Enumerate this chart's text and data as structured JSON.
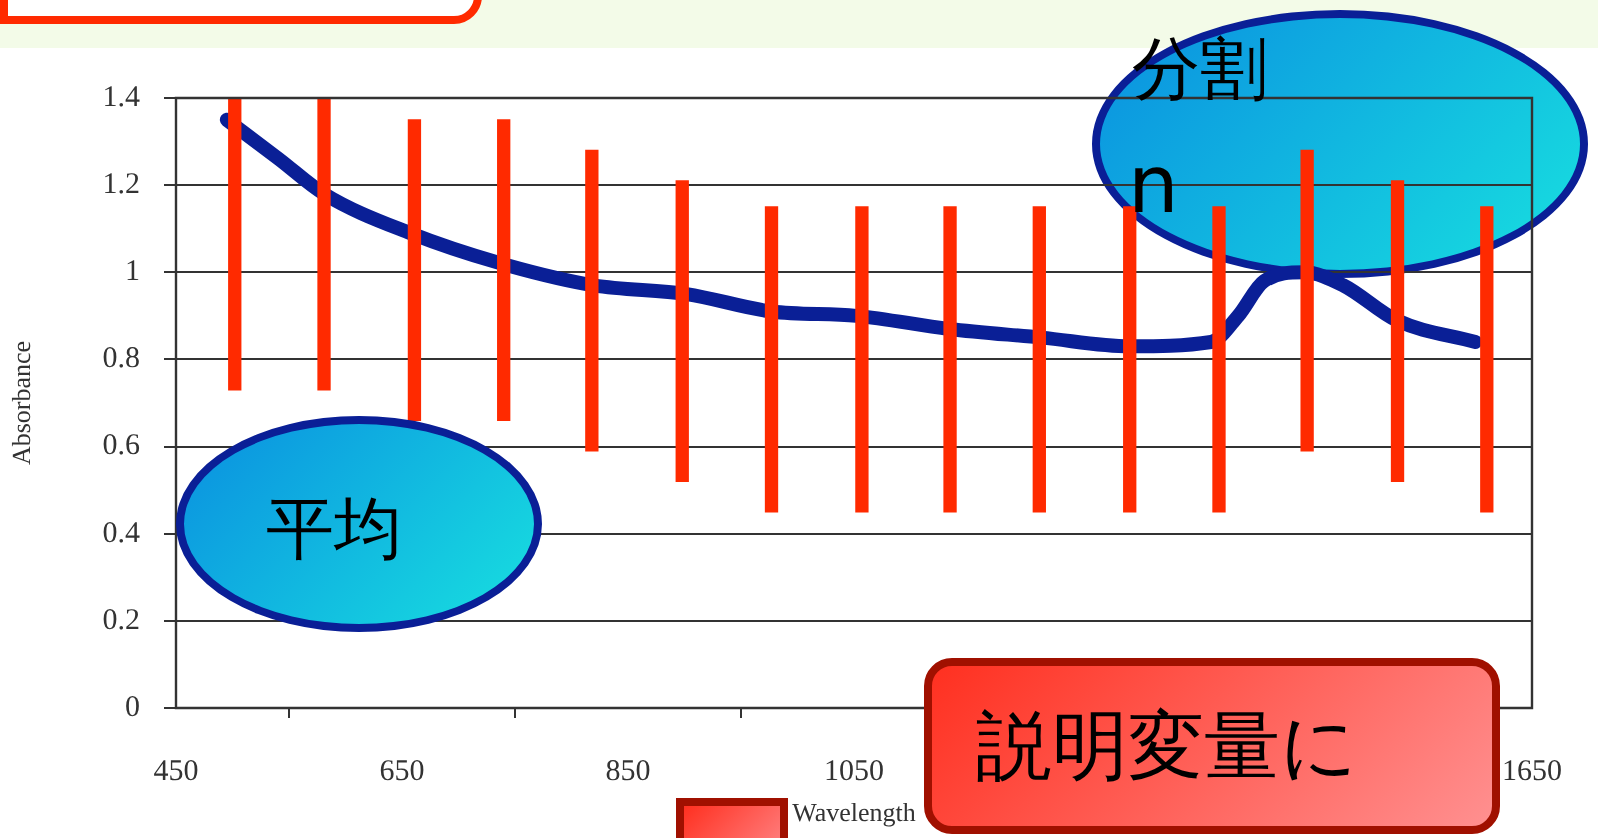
{
  "chart_data": {
    "type": "line",
    "xlabel": "Wavelength",
    "ylabel": "Absorbance",
    "xlim": [
      450,
      1650
    ],
    "xticks": [
      450,
      650,
      850,
      1050,
      1650
    ],
    "ylim": [
      0,
      1.4
    ],
    "yticks": [
      0,
      0.2,
      0.4,
      0.6,
      0.8,
      1,
      1.2,
      1.4
    ],
    "grid": "y",
    "legend": false,
    "marker": "none",
    "series": [
      {
        "type": "bar",
        "color": "#ff2a00",
        "x": [
          502,
          581,
          661,
          740,
          818,
          898,
          977,
          1057,
          1135,
          1214,
          1294,
          1373,
          1451,
          1531,
          1610
        ],
        "base": [
          0.73,
          0.73,
          0.66,
          0.66,
          0.59,
          0.52,
          0.45,
          0.45,
          0.45,
          0.45,
          0.45,
          0.45,
          0.59,
          0.52,
          0.45
        ],
        "values": [
          0.67,
          0.67,
          0.69,
          0.69,
          0.69,
          0.69,
          0.7,
          0.7,
          0.7,
          0.7,
          0.7,
          0.7,
          0.69,
          0.69,
          0.7
        ]
      },
      {
        "color": "#0a1f96",
        "x": [
          495,
          541,
          581,
          657,
          738,
          820,
          902,
          977,
          1052,
          1134,
          1216,
          1294,
          1366,
          1390,
          1413,
          1448,
          1483,
          1530,
          1600
        ],
        "values": [
          1.35,
          1.26,
          1.18,
          1.09,
          1.02,
          0.97,
          0.95,
          0.91,
          0.9,
          0.87,
          0.85,
          0.83,
          0.84,
          0.9,
          0.98,
          1.0,
          0.97,
          0.89,
          0.84
        ]
      }
    ],
    "annotations": [
      "平均",
      "分割",
      "n",
      "説明変量に"
    ]
  }
}
